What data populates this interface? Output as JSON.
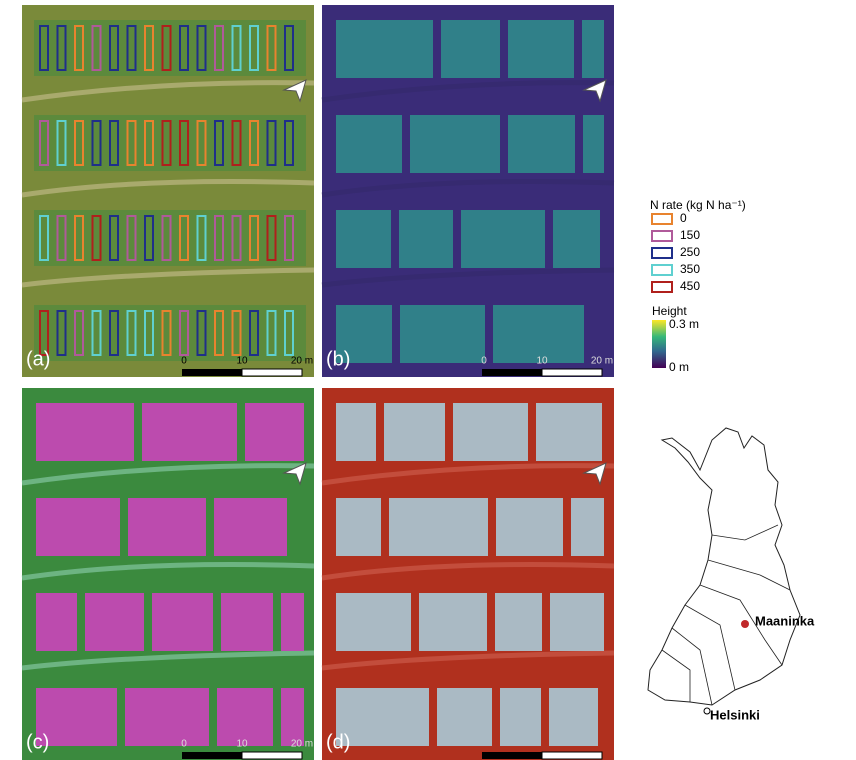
{
  "panels": [
    {
      "label": "(a)",
      "scale_labels": [
        "0",
        "10",
        "20 m"
      ]
    },
    {
      "label": "(b)",
      "scale_labels": [
        "0",
        "10",
        "20 m"
      ]
    },
    {
      "label": "(c)",
      "scale_labels": [
        "0",
        "10",
        "20 m"
      ]
    },
    {
      "label": "(d)",
      "scale_labels": []
    }
  ],
  "legend": {
    "title": "N rate (kg N ha⁻¹)",
    "entries": [
      {
        "label": "0",
        "color": "#e8832e"
      },
      {
        "label": "150",
        "color": "#b05a9a"
      },
      {
        "label": "250",
        "color": "#1f2f8a"
      },
      {
        "label": "350",
        "color": "#5fd0d0"
      },
      {
        "label": "450",
        "color": "#b0201c"
      }
    ]
  },
  "colorbar": {
    "title": "Height",
    "max_label": "0.3 m",
    "min_label": "0 m"
  },
  "map": {
    "places": [
      "Maaninka",
      "Helsinki"
    ]
  }
}
